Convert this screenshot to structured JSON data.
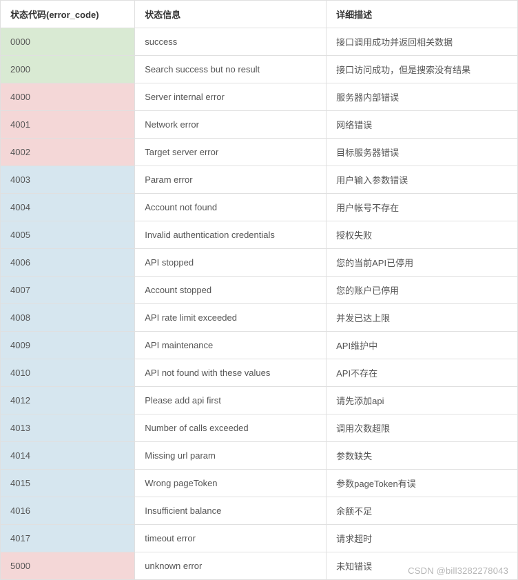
{
  "table": {
    "columns": [
      {
        "key": "code",
        "label": "状态代码(error_code)",
        "width": "26%"
      },
      {
        "key": "info",
        "label": "状态信息",
        "width": "37%"
      },
      {
        "key": "desc",
        "label": "详细描述",
        "width": "37%"
      }
    ],
    "colors": {
      "green_bg": "#d9ead3",
      "pink_bg": "#f4d7d7",
      "blue_bg": "#d6e6ef",
      "white_bg": "#ffffff",
      "border": "#e0e0e0",
      "header_text": "#333333",
      "cell_text": "#555555"
    },
    "rows": [
      {
        "code": "0000",
        "info": "success",
        "desc": "接口调用成功并返回相关数据",
        "code_bg": "#d9ead3"
      },
      {
        "code": "2000",
        "info": "Search success but no result",
        "desc": "接口访问成功，但是搜索没有结果",
        "code_bg": "#d9ead3"
      },
      {
        "code": "4000",
        "info": "Server internal error",
        "desc": "服务器内部错误",
        "code_bg": "#f4d7d7"
      },
      {
        "code": "4001",
        "info": "Network error",
        "desc": "网络错误",
        "code_bg": "#f4d7d7"
      },
      {
        "code": "4002",
        "info": "Target server error",
        "desc": "目标服务器错误",
        "code_bg": "#f4d7d7"
      },
      {
        "code": "4003",
        "info": "Param error",
        "desc": "用户输入参数错误",
        "code_bg": "#d6e6ef"
      },
      {
        "code": "4004",
        "info": "Account not found",
        "desc": "用户帐号不存在",
        "code_bg": "#d6e6ef"
      },
      {
        "code": "4005",
        "info": "Invalid authentication credentials",
        "desc": "授权失败",
        "code_bg": "#d6e6ef"
      },
      {
        "code": "4006",
        "info": "API stopped",
        "desc": "您的当前API已停用",
        "code_bg": "#d6e6ef"
      },
      {
        "code": "4007",
        "info": "Account stopped",
        "desc": "您的账户已停用",
        "code_bg": "#d6e6ef"
      },
      {
        "code": "4008",
        "info": "API rate limit exceeded",
        "desc": "并发已达上限",
        "code_bg": "#d6e6ef"
      },
      {
        "code": "4009",
        "info": "API maintenance",
        "desc": "API维护中",
        "code_bg": "#d6e6ef"
      },
      {
        "code": "4010",
        "info": "API not found with these values",
        "desc": "API不存在",
        "code_bg": "#d6e6ef"
      },
      {
        "code": "4012",
        "info": "Please add api first",
        "desc": "请先添加api",
        "code_bg": "#d6e6ef"
      },
      {
        "code": "4013",
        "info": "Number of calls exceeded",
        "desc": "调用次数超限",
        "code_bg": "#d6e6ef"
      },
      {
        "code": "4014",
        "info": "Missing url param",
        "desc": "参数缺失",
        "code_bg": "#d6e6ef"
      },
      {
        "code": "4015",
        "info": "Wrong pageToken",
        "desc": "参数pageToken有误",
        "code_bg": "#d6e6ef"
      },
      {
        "code": "4016",
        "info": "Insufficient balance",
        "desc": "余额不足",
        "code_bg": "#d6e6ef"
      },
      {
        "code": "4017",
        "info": "timeout error",
        "desc": "请求超时",
        "code_bg": "#d6e6ef"
      },
      {
        "code": "5000",
        "info": "unknown error",
        "desc": "未知错误",
        "code_bg": "#f4d7d7"
      }
    ]
  },
  "watermark": "CSDN @bill3282278043"
}
